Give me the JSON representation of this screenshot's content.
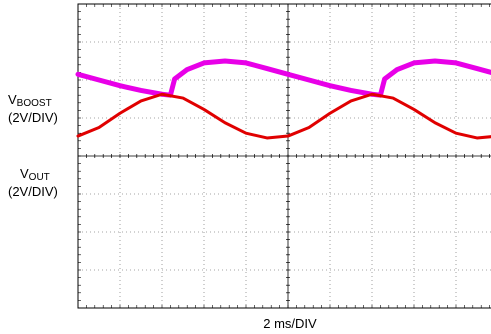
{
  "channels": [
    {
      "main": "V",
      "sub": "BOOST",
      "scale": "(2V/DIV)",
      "color": "#e800e8"
    },
    {
      "main": "V",
      "sub": "OUT",
      "scale": "(2V/DIV)",
      "color": "#e00000"
    }
  ],
  "xlabel": "2 ms/DIV",
  "chart_data": {
    "type": "line",
    "grid": true,
    "x_divisions": 10,
    "y_divisions": 8,
    "xlabel": "2 ms/DIV",
    "x_unit": "ms",
    "x_per_div": 2,
    "y_unit": "V",
    "y_per_div": 2,
    "series": [
      {
        "name": "VBOOST",
        "color": "#e800e8",
        "x": [
          0,
          0.5,
          1.0,
          1.5,
          2.0,
          2.2,
          2.3,
          2.6,
          3.0,
          3.5,
          4.0,
          4.5,
          5.0,
          5.5,
          6.0,
          6.5,
          7.0,
          7.2,
          7.3,
          7.6,
          8.0,
          8.5,
          9.0,
          9.5,
          10.0
        ],
        "y": [
          4.3,
          4.0,
          3.7,
          3.45,
          3.25,
          3.2,
          4.05,
          4.55,
          4.9,
          5.0,
          4.9,
          4.6,
          4.3,
          4.0,
          3.7,
          3.45,
          3.25,
          3.2,
          4.05,
          4.55,
          4.9,
          5.0,
          4.9,
          4.6,
          4.3
        ]
      },
      {
        "name": "VOUT",
        "color": "#e00000",
        "x": [
          0,
          0.5,
          1.0,
          1.5,
          2.0,
          2.5,
          3.0,
          3.5,
          4.0,
          4.5,
          5.0,
          5.5,
          6.0,
          6.5,
          7.0,
          7.5,
          8.0,
          8.5,
          9.0,
          9.5,
          10.0
        ],
        "y": [
          1.05,
          1.5,
          2.25,
          2.9,
          3.25,
          3.05,
          2.45,
          1.75,
          1.2,
          0.95,
          1.05,
          1.5,
          2.25,
          2.9,
          3.25,
          3.05,
          2.45,
          1.75,
          1.2,
          0.95,
          1.05
        ]
      }
    ]
  }
}
